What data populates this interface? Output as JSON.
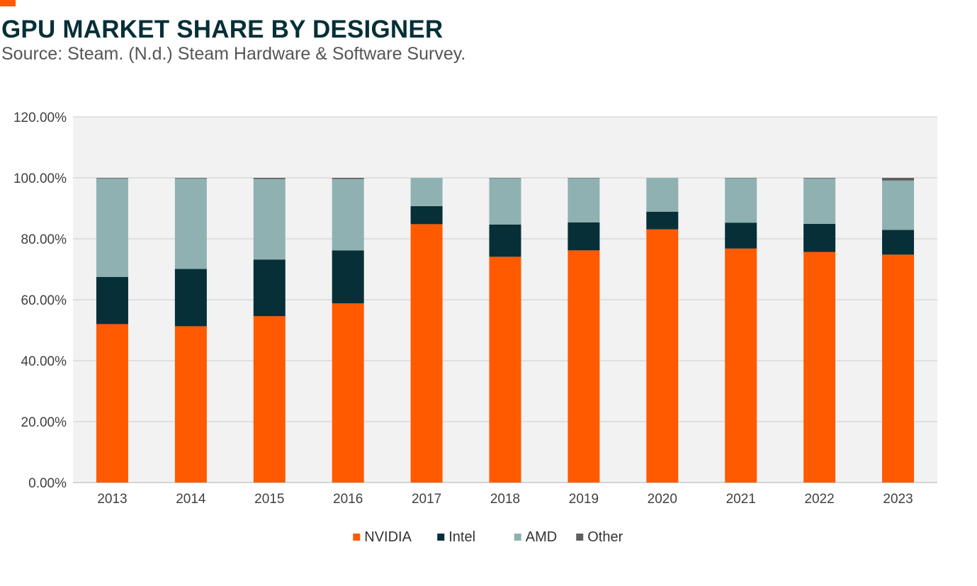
{
  "header": {
    "title": "GPU MARKET SHARE BY DESIGNER",
    "subtitle": "Source: Steam. (N.d.) Steam Hardware & Software Survey."
  },
  "colors": {
    "accent": "#ff5a00",
    "title": "#062f38",
    "plot_background": "#f2f2f2",
    "gridline": "#d4d4d4"
  },
  "chart_data": {
    "type": "bar",
    "stacked": true,
    "categories": [
      "2013",
      "2014",
      "2015",
      "2016",
      "2017",
      "2018",
      "2019",
      "2020",
      "2021",
      "2022",
      "2023"
    ],
    "series": [
      {
        "name": "NVIDIA",
        "color": "#ff5a00",
        "values": [
          52.0,
          51.3,
          54.6,
          58.8,
          84.8,
          74.1,
          76.2,
          83.1,
          76.8,
          75.7,
          74.8
        ]
      },
      {
        "name": "Intel",
        "color": "#062f38",
        "values": [
          15.5,
          18.8,
          18.6,
          17.4,
          5.9,
          10.6,
          9.2,
          5.8,
          8.5,
          9.2,
          8.1
        ]
      },
      {
        "name": "AMD",
        "color": "#8fb1b1",
        "values": [
          32.3,
          29.7,
          26.4,
          23.4,
          9.3,
          15.2,
          14.5,
          11.1,
          14.6,
          14.9,
          16.2
        ]
      },
      {
        "name": "Other",
        "color": "#5f5f5f",
        "values": [
          0.2,
          0.2,
          0.4,
          0.4,
          0.0,
          0.1,
          0.1,
          0.0,
          0.1,
          0.2,
          0.9
        ]
      }
    ],
    "y_ticks": [
      "0.00%",
      "20.00%",
      "40.00%",
      "60.00%",
      "80.00%",
      "100.00%",
      "120.00%"
    ],
    "ylim": [
      0,
      120
    ],
    "grid": true,
    "legend_position": "bottom-center"
  }
}
